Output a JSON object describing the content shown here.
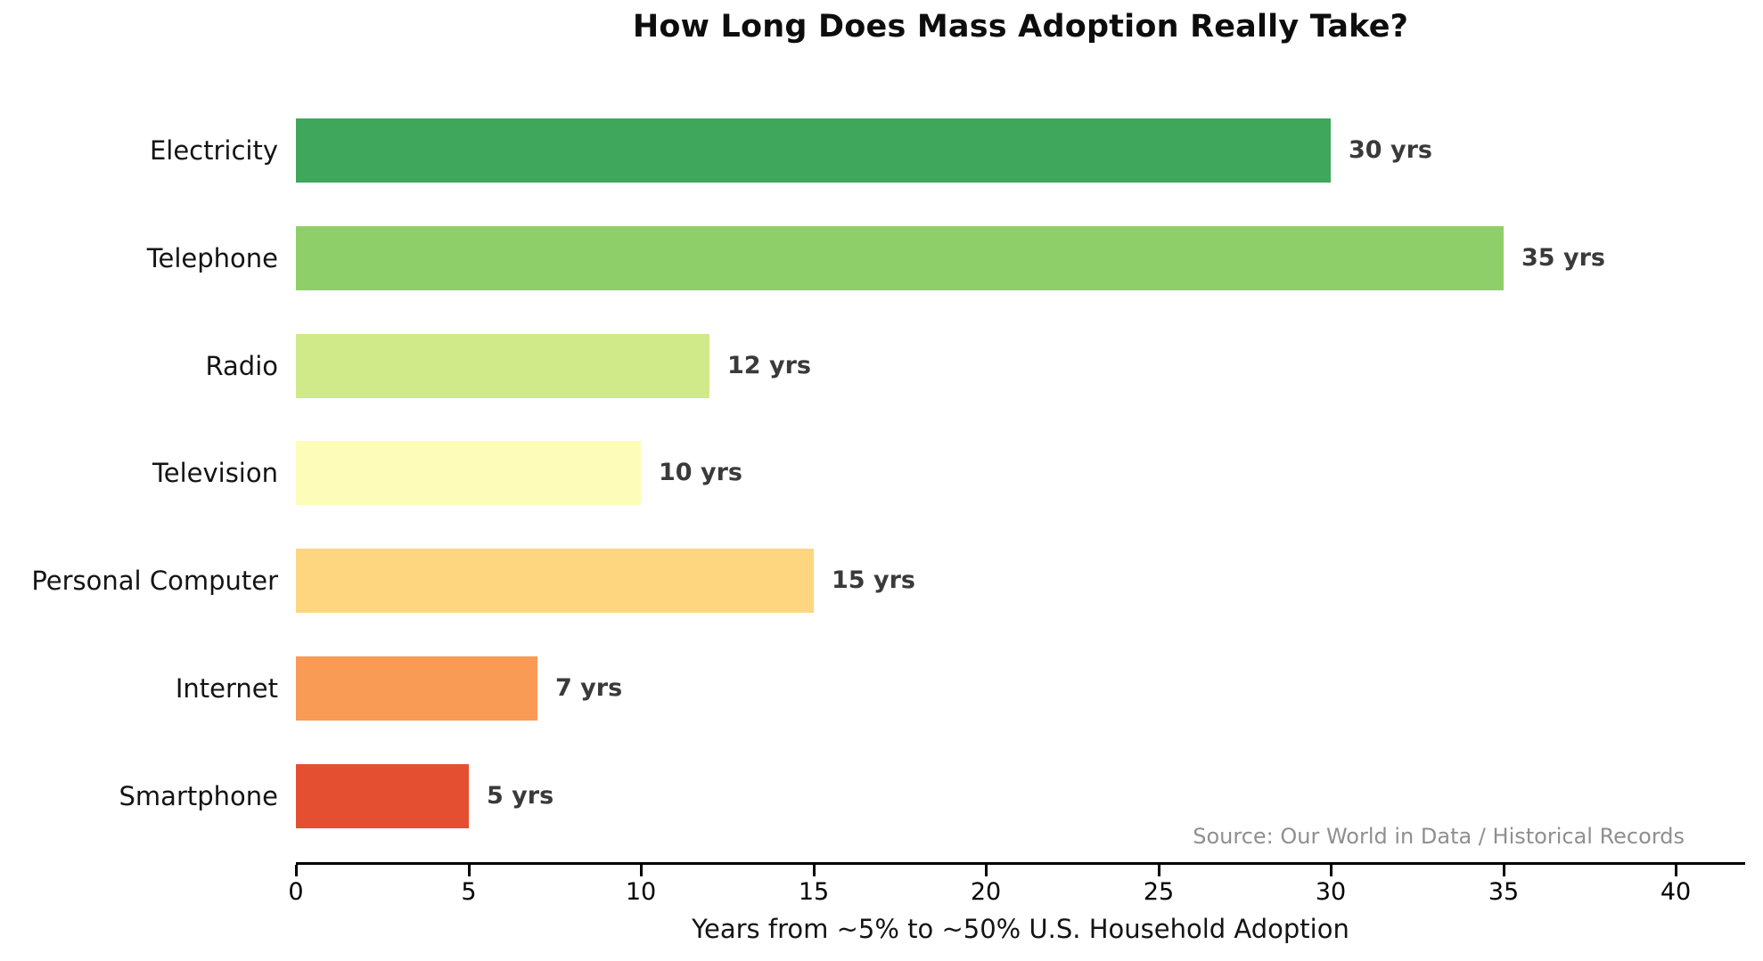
{
  "chart_data": {
    "type": "bar",
    "orientation": "horizontal",
    "title": "How Long Does Mass Adoption Really Take?",
    "categories": [
      "Electricity",
      "Telephone",
      "Radio",
      "Television",
      "Personal Computer",
      "Internet",
      "Smartphone"
    ],
    "values": [
      30,
      35,
      12,
      10,
      15,
      7,
      5
    ],
    "value_labels": [
      "30 yrs",
      "35 yrs",
      "12 yrs",
      "10 yrs",
      "15 yrs",
      "7 yrs",
      "5 yrs"
    ],
    "bar_colors": [
      "#3EA75C",
      "#8ECF6A",
      "#D0EA89",
      "#FDFDB9",
      "#FDD67F",
      "#F99A55",
      "#E44F32"
    ],
    "xlabel": "Years from ~5% to ~50% U.S. Household Adoption",
    "xticks": [
      "0",
      "5",
      "10",
      "15",
      "20",
      "25",
      "30",
      "35",
      "40"
    ],
    "xtick_values": [
      0,
      5,
      10,
      15,
      20,
      25,
      30,
      35,
      40
    ],
    "xlim": [
      0,
      42
    ],
    "grid": false,
    "legend": null,
    "source": "Source: Our World in Data / Historical Records",
    "colors": {
      "value_label": "#3a3a3a",
      "axis": "#000000",
      "source_text": "#8f8f8f",
      "background": "#ffffff"
    }
  }
}
